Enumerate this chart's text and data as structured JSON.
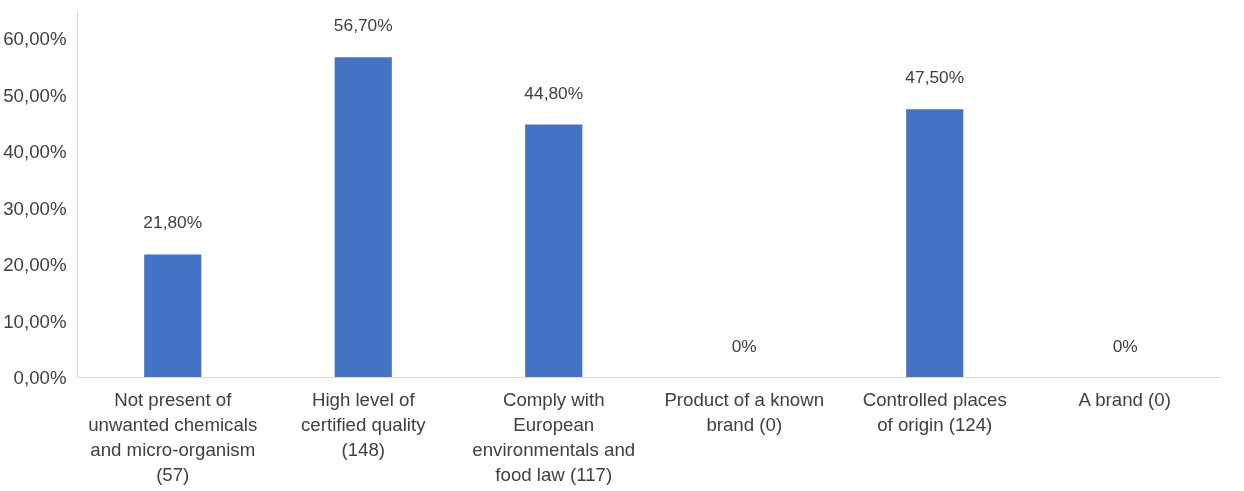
{
  "chart_data": {
    "type": "bar",
    "categories": [
      "Not present of unwanted chemicals and micro-organism (57)",
      "High level of certified quality (148)",
      "Comply with European environmentals and food law (117)",
      "Product of a known brand (0)",
      "Controlled places of origin (124)",
      "A brand (0)"
    ],
    "values": [
      21.8,
      56.7,
      44.8,
      0,
      47.5,
      0
    ],
    "value_labels": [
      "21,80%",
      "56,70%",
      "44,80%",
      "0%",
      "47,50%",
      "0%"
    ],
    "color": "#4472c4",
    "ylim": [
      0,
      65
    ],
    "yticks": [
      {
        "value": 0,
        "label": "0,00%"
      },
      {
        "value": 10,
        "label": "10,00%"
      },
      {
        "value": 20,
        "label": "20,00%"
      },
      {
        "value": 30,
        "label": "30,00%"
      },
      {
        "value": 40,
        "label": "40,00%"
      },
      {
        "value": 50,
        "label": "50,00%"
      },
      {
        "value": 60,
        "label": "60,00%"
      }
    ],
    "grid": false
  }
}
